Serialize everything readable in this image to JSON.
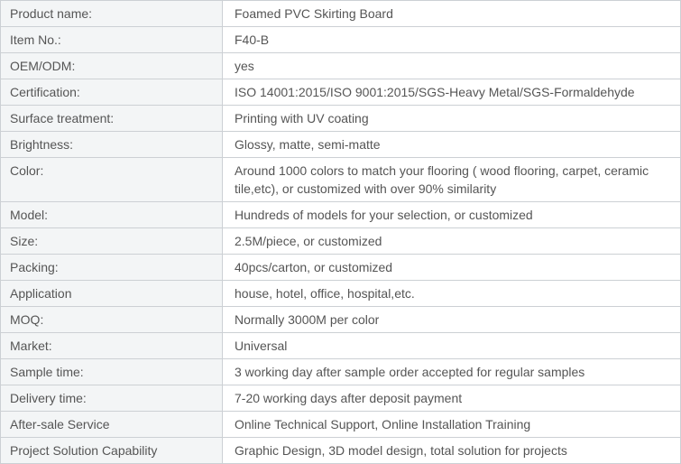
{
  "theme": {
    "border_color": "#ccd0d4",
    "label_bg": "#f3f5f6",
    "value_bg": "#ffffff",
    "text_color": "#555555"
  },
  "table": {
    "rows": [
      {
        "label": "Product name:",
        "value": "Foamed PVC Skirting Board"
      },
      {
        "label": "Item No.:",
        "value": "F40-B"
      },
      {
        "label": "OEM/ODM:",
        "value": "yes"
      },
      {
        "label": "Certification:",
        "value": "ISO 14001:2015/ISO 9001:2015/SGS-Heavy Metal/SGS-Formaldehyde"
      },
      {
        "label": "Surface treatment:",
        "value": "Printing with UV coating"
      },
      {
        "label": "Brightness:",
        "value": "Glossy, matte, semi-matte"
      },
      {
        "label": "Color:",
        "value": "Around 1000 colors to match your flooring ( wood flooring, carpet, ceramic tile,etc), or customized with over 90% similarity"
      },
      {
        "label": "Model:",
        "value": "Hundreds of models for your selection, or customized"
      },
      {
        "label": "Size:",
        "value": "2.5M/piece, or customized"
      },
      {
        "label": "Packing:",
        "value": "40pcs/carton, or customized"
      },
      {
        "label": "Application",
        "value": "house, hotel, office, hospital,etc."
      },
      {
        "label": "MOQ:",
        "value": "Normally 3000M per color"
      },
      {
        "label": "Market:",
        "value": "Universal"
      },
      {
        "label": "Sample time:",
        "value": "3 working day after sample order accepted for regular samples"
      },
      {
        "label": "Delivery time:",
        "value": "7-20 working days after deposit payment"
      },
      {
        "label": "After-sale Service",
        "value": "Online Technical Support, Online Installation Training"
      },
      {
        "label": "Project Solution Capability",
        "value": "Graphic Design, 3D model design, total solution for projects"
      }
    ]
  }
}
